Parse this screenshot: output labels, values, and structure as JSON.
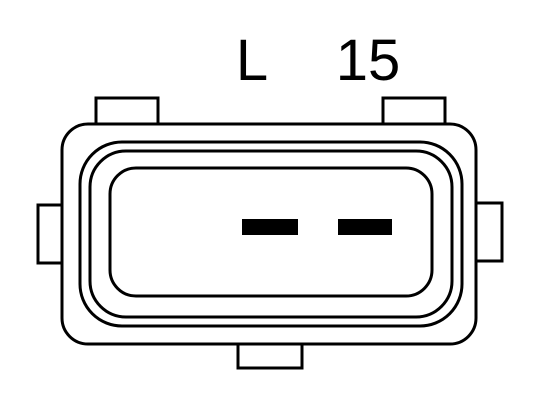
{
  "terminals": [
    {
      "label": "L"
    },
    {
      "label": "15"
    }
  ]
}
